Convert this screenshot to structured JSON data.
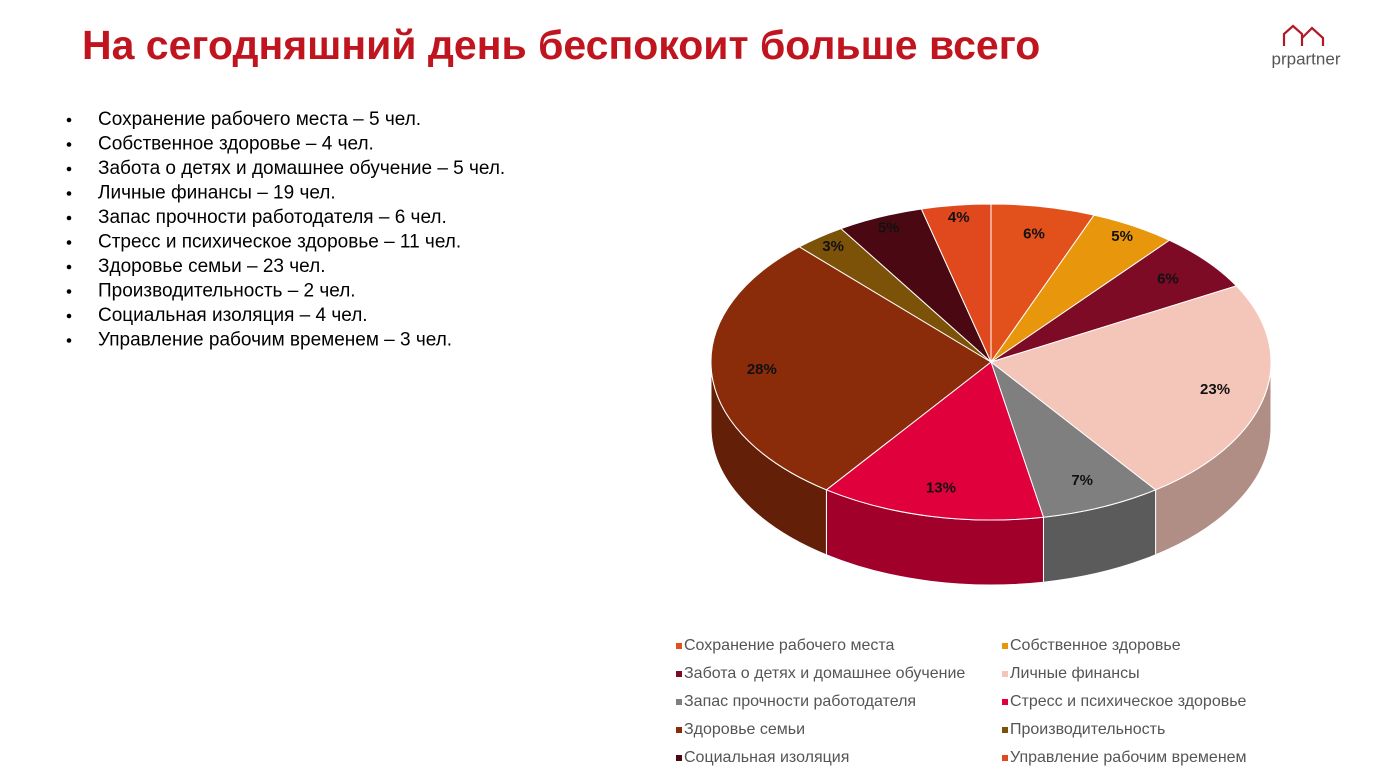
{
  "header": {
    "title": "На сегодняшний день беспокоит больше всего",
    "logo": "prpartner"
  },
  "bullets": [
    "Сохранение рабочего места – 5 чел.",
    "Собственное здоровье – 4 чел.",
    "Забота о детях и домашнее обучение – 5 чел.",
    "Личные финансы – 19 чел.",
    "Запас прочности работодателя – 6 чел.",
    "Стресс и психическое здоровье – 11 чел.",
    "Здоровье семьи – 23 чел.",
    "Производительность – 2 чел.",
    "Социальная изоляция – 4 чел.",
    "Управление рабочим временем – 3 чел."
  ],
  "chart_data": {
    "type": "pie",
    "categories": [
      "Сохранение рабочего места",
      "Собственное здоровье",
      "Забота о детях и домашнее обучение",
      "Личные финансы",
      "Запас прочности работодателя",
      "Стресс и психическое здоровье",
      "Здоровье семьи",
      "Производительность",
      "Социальная изоляция",
      "Управление рабочим временем"
    ],
    "values": [
      6,
      5,
      6,
      23,
      7,
      13,
      28,
      3,
      5,
      4
    ],
    "value_labels": [
      "6%",
      "5%",
      "6%",
      "23%",
      "7%",
      "13%",
      "28%",
      "3%",
      "5%",
      "4%"
    ],
    "colors": [
      "#e2501c",
      "#e8960c",
      "#7d0b26",
      "#f4c5b9",
      "#7f7f7f",
      "#e0003c",
      "#8a2b0a",
      "#7b5208",
      "#4a0912",
      "#e0481e"
    ],
    "legend": "bottom"
  }
}
